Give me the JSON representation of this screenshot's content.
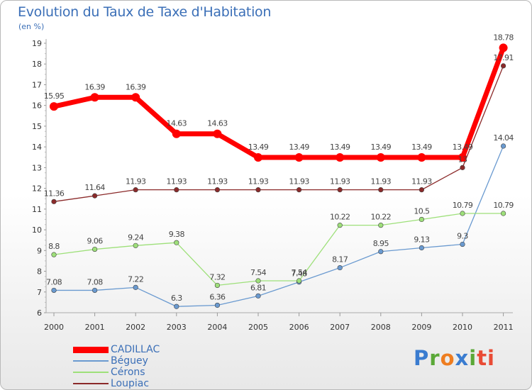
{
  "header": {
    "title": "Evolution du Taux de Taxe d'Habitation",
    "unit": "(en %)"
  },
  "logo": {
    "text": "Proxiti",
    "letters": [
      "P",
      "r",
      "o",
      "x",
      "i",
      "ti"
    ]
  },
  "chart_data": {
    "type": "line",
    "title": "Evolution du Taux de Taxe d'Habitation",
    "ylabel": "(en %)",
    "xlabel": "",
    "ylim": [
      6,
      19
    ],
    "yticks": [
      6,
      7,
      8,
      9,
      10,
      11,
      12,
      13,
      14,
      15,
      16,
      17,
      18,
      19
    ],
    "categories": [
      "2000",
      "2001",
      "2002",
      "2003",
      "2004",
      "2005",
      "2006",
      "2007",
      "2008",
      "2009",
      "2010",
      "2011"
    ],
    "grid": false,
    "legend": "bottom-left",
    "series": [
      {
        "name": "CADILLAC",
        "color": "#ff0000",
        "values": [
          15.95,
          16.39,
          16.39,
          14.63,
          14.63,
          13.49,
          13.49,
          13.49,
          13.49,
          13.49,
          13.49,
          18.78
        ],
        "labels": [
          "15.95",
          "16.39",
          "16.39",
          "14.63",
          "14.63",
          "13.49",
          "13.49",
          "13.49",
          "13.49",
          "13.49",
          "13.49",
          "18.78"
        ]
      },
      {
        "name": "Béguey",
        "color": "#6a9ad0",
        "values": [
          7.08,
          7.08,
          7.22,
          6.3,
          6.36,
          6.81,
          7.48,
          8.17,
          8.95,
          9.13,
          9.3,
          14.04
        ],
        "labels": [
          "7.08",
          "7.08",
          "7.22",
          "6.3",
          "6.36",
          "6.81",
          "7.48",
          "8.17",
          "8.95",
          "9.13",
          "9.3",
          "14.04"
        ]
      },
      {
        "name": "Cérons",
        "color": "#9ee07a",
        "values": [
          8.8,
          9.06,
          9.24,
          9.38,
          7.32,
          7.54,
          7.54,
          10.22,
          10.22,
          10.5,
          10.79,
          10.79
        ],
        "labels": [
          "8.8",
          "9.06",
          "9.24",
          "9.38",
          "7.32",
          "7.54",
          "7.54",
          "10.22",
          "10.22",
          "10.5",
          "10.79",
          "10.79"
        ]
      },
      {
        "name": "Loupiac",
        "color": "#8b2a2a",
        "values": [
          11.36,
          11.64,
          11.93,
          11.93,
          11.93,
          11.93,
          11.93,
          11.93,
          11.93,
          11.93,
          13.0,
          17.91
        ],
        "labels": [
          "11.36",
          "11.64",
          "11.93",
          "11.93",
          "11.93",
          "11.93",
          "11.93",
          "11.93",
          "11.93",
          "11.93",
          "13",
          "17.91"
        ]
      }
    ]
  }
}
